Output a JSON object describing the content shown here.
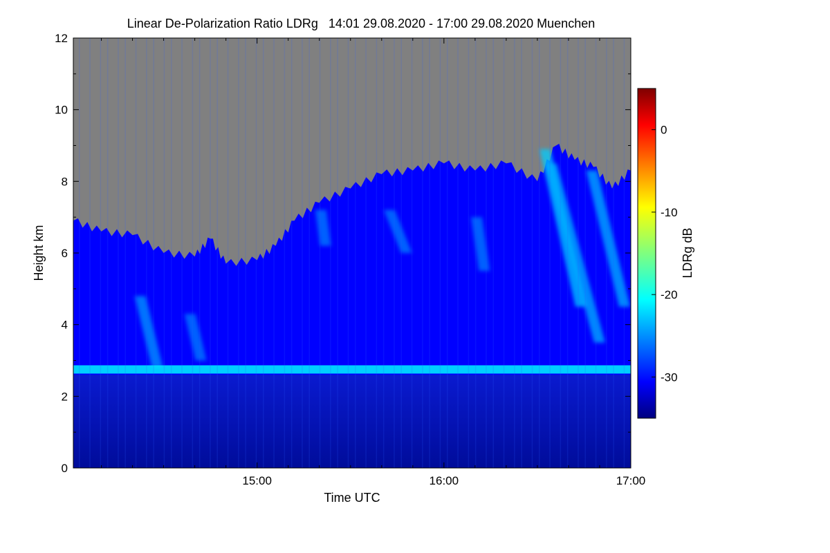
{
  "chart_data": {
    "type": "heatmap",
    "title": "Linear De-Polarization Ratio LDRg   14:01 29.08.2020 - 17:00 29.08.2020 Muenchen",
    "xlabel": "Time UTC",
    "ylabel": "Height km",
    "x_range": [
      "14:01",
      "17:00"
    ],
    "x_ticks": [
      "15:00",
      "16:00",
      "17:00"
    ],
    "ylim": [
      0,
      12
    ],
    "y_ticks": [
      0,
      2,
      4,
      6,
      8,
      10,
      12
    ],
    "colorbar": {
      "label": "LDRg dB",
      "range": [
        -35,
        5
      ],
      "ticks": [
        -30,
        -20,
        -10,
        0
      ],
      "colormap": "jet"
    },
    "missing_color": "#808080",
    "background_ldr_db": -30,
    "boundary_layer": {
      "top_km": 2.6,
      "ldr_db": -34
    },
    "layer_2_7km": {
      "height_km": 2.75,
      "ldr_db": -21
    },
    "signal_top_km": [
      {
        "time": "14:01",
        "height_km": 6.9
      },
      {
        "time": "14:10",
        "height_km": 6.6
      },
      {
        "time": "14:20",
        "height_km": 6.5
      },
      {
        "time": "14:30",
        "height_km": 6.0
      },
      {
        "time": "14:40",
        "height_km": 5.9
      },
      {
        "time": "14:45",
        "height_km": 6.4
      },
      {
        "time": "14:50",
        "height_km": 5.7
      },
      {
        "time": "15:00",
        "height_km": 5.8
      },
      {
        "time": "15:06",
        "height_km": 6.2
      },
      {
        "time": "15:12",
        "height_km": 6.9
      },
      {
        "time": "15:20",
        "height_km": 7.4
      },
      {
        "time": "15:30",
        "height_km": 7.8
      },
      {
        "time": "15:40",
        "height_km": 8.2
      },
      {
        "time": "15:50",
        "height_km": 8.3
      },
      {
        "time": "16:00",
        "height_km": 8.5
      },
      {
        "time": "16:10",
        "height_km": 8.3
      },
      {
        "time": "16:20",
        "height_km": 8.5
      },
      {
        "time": "16:30",
        "height_km": 8.0
      },
      {
        "time": "16:36",
        "height_km": 9.0
      },
      {
        "time": "16:42",
        "height_km": 8.6
      },
      {
        "time": "16:48",
        "height_km": 8.4
      },
      {
        "time": "16:54",
        "height_km": 7.8
      },
      {
        "time": "17:00",
        "height_km": 8.3
      }
    ],
    "streaks": [
      {
        "time_top": "14:22",
        "top_km": 4.8,
        "time_bottom": "14:28",
        "bottom_km": 2.8,
        "ldr_db": -24
      },
      {
        "time_top": "14:38",
        "top_km": 4.3,
        "time_bottom": "14:42",
        "bottom_km": 3.0,
        "ldr_db": -25
      },
      {
        "time_top": "15:20",
        "top_km": 7.2,
        "time_bottom": "15:22",
        "bottom_km": 6.2,
        "ldr_db": -25
      },
      {
        "time_top": "15:42",
        "top_km": 7.2,
        "time_bottom": "15:48",
        "bottom_km": 6.0,
        "ldr_db": -25
      },
      {
        "time_top": "16:10",
        "top_km": 7.0,
        "time_bottom": "16:13",
        "bottom_km": 5.5,
        "ldr_db": -25
      },
      {
        "time_top": "16:32",
        "top_km": 8.9,
        "time_bottom": "16:44",
        "bottom_km": 4.5,
        "ldr_db": -22
      },
      {
        "time_top": "16:34",
        "top_km": 8.5,
        "time_bottom": "16:50",
        "bottom_km": 3.5,
        "ldr_db": -23
      },
      {
        "time_top": "16:47",
        "top_km": 8.3,
        "time_bottom": "16:58",
        "bottom_km": 4.5,
        "ldr_db": -23
      }
    ]
  }
}
